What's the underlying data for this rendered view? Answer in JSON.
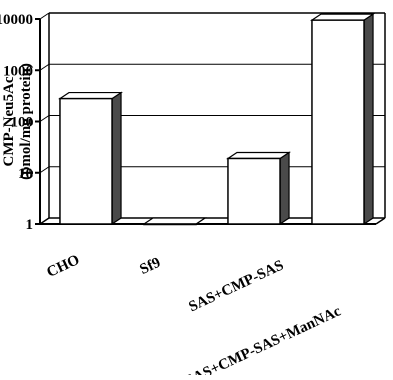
{
  "chart_data": {
    "type": "bar",
    "title": "",
    "xlabel": "",
    "ylabel": [
      "CMP-Neu5Ac",
      "(pmol/mg protein)"
    ],
    "y_scale": "log",
    "ylim": [
      1,
      10000
    ],
    "y_ticks": [
      "1",
      "10",
      "100",
      "1000",
      "10000"
    ],
    "grid": true,
    "style": "3d",
    "categories": [
      "CHO",
      "Sf9",
      "SAS+CMP-SAS",
      "SAS+CMP-SAS+ManNAc"
    ],
    "series": [
      {
        "values": [
          280,
          1,
          19,
          9500
        ]
      }
    ]
  },
  "colors": {
    "bar_face": "#ffffff",
    "bar_side": "#4a4a4a",
    "bar_edge": "#000000",
    "wall": "#ffffff",
    "grid": "#000000"
  }
}
